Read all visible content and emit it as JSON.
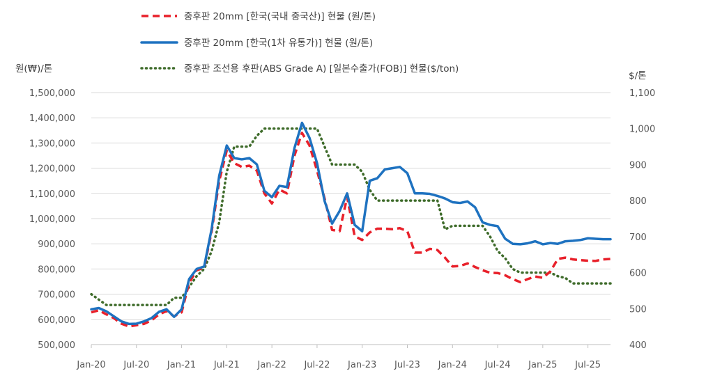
{
  "chart_data": {
    "type": "line",
    "title": "",
    "y_left_unit": "원(₩)/톤",
    "y_right_unit": "$/톤",
    "y_left_ticks": [
      "500,000",
      "600,000",
      "700,000",
      "800,000",
      "900,000",
      "1,000,000",
      "1,100,000",
      "1,200,000",
      "1,300,000",
      "1,400,000",
      "1,500,000"
    ],
    "y_right_ticks": [
      "400",
      "500",
      "600",
      "700",
      "800",
      "900",
      "1,000",
      "1,100"
    ],
    "ylim_left": [
      500000,
      1500000
    ],
    "ylim_right": [
      400,
      1100
    ],
    "x_ticks": [
      "Jan-20",
      "Jul-20",
      "Jan-21",
      "Jul-21",
      "Jan-22",
      "Jul-22",
      "Jan-23",
      "Jul-23",
      "Jan-24",
      "Jul-24",
      "Jan-25",
      "Jul-25"
    ],
    "x_range": [
      "2020-01",
      "2025-10"
    ],
    "grid": "horizontal",
    "legend_position": "top",
    "series": [
      {
        "name": "중후판 20mm [한국(국내 중국산)] 현물 (원/톤)",
        "axis": "left",
        "color": "#e8202a",
        "style": "dashed",
        "points": [
          [
            "2020-01",
            628000
          ],
          [
            "2020-02",
            636000
          ],
          [
            "2020-03",
            620000
          ],
          [
            "2020-04",
            605000
          ],
          [
            "2020-05",
            583000
          ],
          [
            "2020-06",
            572000
          ],
          [
            "2020-07",
            577000
          ],
          [
            "2020-08",
            582000
          ],
          [
            "2020-09",
            596000
          ],
          [
            "2020-10",
            620000
          ],
          [
            "2020-11",
            633000
          ],
          [
            "2020-12",
            612000
          ],
          [
            "2021-01",
            628000
          ],
          [
            "2021-02",
            745000
          ],
          [
            "2021-03",
            795000
          ],
          [
            "2021-04",
            805000
          ],
          [
            "2021-05",
            950000
          ],
          [
            "2021-06",
            1150000
          ],
          [
            "2021-07",
            1270000
          ],
          [
            "2021-08",
            1220000
          ],
          [
            "2021-09",
            1205000
          ],
          [
            "2021-10",
            1210000
          ],
          [
            "2021-11",
            1190000
          ],
          [
            "2021-12",
            1100000
          ],
          [
            "2022-01",
            1060000
          ],
          [
            "2022-02",
            1115000
          ],
          [
            "2022-03",
            1100000
          ],
          [
            "2022-04",
            1250000
          ],
          [
            "2022-05",
            1340000
          ],
          [
            "2022-06",
            1290000
          ],
          [
            "2022-07",
            1190000
          ],
          [
            "2022-08",
            1080000
          ],
          [
            "2022-09",
            955000
          ],
          [
            "2022-10",
            950000
          ],
          [
            "2022-11",
            1085000
          ],
          [
            "2022-12",
            930000
          ],
          [
            "2023-01",
            915000
          ],
          [
            "2023-02",
            945000
          ],
          [
            "2023-03",
            960000
          ],
          [
            "2023-04",
            960000
          ],
          [
            "2023-05",
            958000
          ],
          [
            "2023-06",
            962000
          ],
          [
            "2023-07",
            950000
          ],
          [
            "2023-08",
            865000
          ],
          [
            "2023-09",
            865000
          ],
          [
            "2023-10",
            880000
          ],
          [
            "2023-11",
            875000
          ],
          [
            "2023-12",
            845000
          ],
          [
            "2024-01",
            810000
          ],
          [
            "2024-02",
            812000
          ],
          [
            "2024-03",
            822000
          ],
          [
            "2024-04",
            808000
          ],
          [
            "2024-05",
            795000
          ],
          [
            "2024-06",
            785000
          ],
          [
            "2024-07",
            784000
          ],
          [
            "2024-08",
            775000
          ],
          [
            "2024-09",
            760000
          ],
          [
            "2024-10",
            748000
          ],
          [
            "2024-11",
            760000
          ],
          [
            "2024-12",
            770000
          ],
          [
            "2025-01",
            765000
          ],
          [
            "2025-02",
            790000
          ],
          [
            "2025-03",
            840000
          ],
          [
            "2025-04",
            845000
          ],
          [
            "2025-05",
            838000
          ],
          [
            "2025-06",
            835000
          ],
          [
            "2025-07",
            833000
          ],
          [
            "2025-08",
            832000
          ],
          [
            "2025-09",
            838000
          ],
          [
            "2025-10",
            840000
          ]
        ]
      },
      {
        "name": "중후판 20mm [한국(1차 유통가)] 현물 (원/톤)",
        "axis": "left",
        "color": "#1e72c0",
        "style": "solid",
        "points": [
          [
            "2020-01",
            640000
          ],
          [
            "2020-02",
            645000
          ],
          [
            "2020-03",
            632000
          ],
          [
            "2020-04",
            612000
          ],
          [
            "2020-05",
            592000
          ],
          [
            "2020-06",
            582000
          ],
          [
            "2020-07",
            583000
          ],
          [
            "2020-08",
            592000
          ],
          [
            "2020-09",
            605000
          ],
          [
            "2020-10",
            630000
          ],
          [
            "2020-11",
            640000
          ],
          [
            "2020-12",
            610000
          ],
          [
            "2021-01",
            640000
          ],
          [
            "2021-02",
            760000
          ],
          [
            "2021-03",
            800000
          ],
          [
            "2021-04",
            810000
          ],
          [
            "2021-05",
            960000
          ],
          [
            "2021-06",
            1170000
          ],
          [
            "2021-07",
            1290000
          ],
          [
            "2021-08",
            1240000
          ],
          [
            "2021-09",
            1235000
          ],
          [
            "2021-10",
            1240000
          ],
          [
            "2021-11",
            1215000
          ],
          [
            "2021-12",
            1110000
          ],
          [
            "2022-01",
            1085000
          ],
          [
            "2022-02",
            1130000
          ],
          [
            "2022-03",
            1125000
          ],
          [
            "2022-04",
            1280000
          ],
          [
            "2022-05",
            1380000
          ],
          [
            "2022-06",
            1320000
          ],
          [
            "2022-07",
            1220000
          ],
          [
            "2022-08",
            1070000
          ],
          [
            "2022-09",
            980000
          ],
          [
            "2022-10",
            1030000
          ],
          [
            "2022-11",
            1100000
          ],
          [
            "2022-12",
            975000
          ],
          [
            "2023-01",
            950000
          ],
          [
            "2023-02",
            1150000
          ],
          [
            "2023-03",
            1160000
          ],
          [
            "2023-04",
            1195000
          ],
          [
            "2023-05",
            1200000
          ],
          [
            "2023-06",
            1205000
          ],
          [
            "2023-07",
            1180000
          ],
          [
            "2023-08",
            1100000
          ],
          [
            "2023-09",
            1100000
          ],
          [
            "2023-10",
            1098000
          ],
          [
            "2023-11",
            1090000
          ],
          [
            "2023-12",
            1080000
          ],
          [
            "2024-01",
            1065000
          ],
          [
            "2024-02",
            1062000
          ],
          [
            "2024-03",
            1068000
          ],
          [
            "2024-04",
            1045000
          ],
          [
            "2024-05",
            985000
          ],
          [
            "2024-06",
            975000
          ],
          [
            "2024-07",
            970000
          ],
          [
            "2024-08",
            920000
          ],
          [
            "2024-09",
            900000
          ],
          [
            "2024-10",
            898000
          ],
          [
            "2024-11",
            902000
          ],
          [
            "2024-12",
            910000
          ],
          [
            "2025-01",
            898000
          ],
          [
            "2025-02",
            903000
          ],
          [
            "2025-03",
            900000
          ],
          [
            "2025-04",
            910000
          ],
          [
            "2025-05",
            912000
          ],
          [
            "2025-06",
            915000
          ],
          [
            "2025-07",
            922000
          ],
          [
            "2025-08",
            920000
          ],
          [
            "2025-09",
            918000
          ],
          [
            "2025-10",
            918000
          ]
        ]
      },
      {
        "name": "중후판 조선용 후판(ABS Grade A) [일본수출가(FOB)] 현물($/ton)",
        "axis": "right",
        "color": "#3e6b2a",
        "style": "dotted",
        "points": [
          [
            "2020-01",
            540
          ],
          [
            "2020-02",
            525
          ],
          [
            "2020-03",
            510
          ],
          [
            "2020-04",
            510
          ],
          [
            "2020-05",
            510
          ],
          [
            "2020-06",
            510
          ],
          [
            "2020-07",
            510
          ],
          [
            "2020-08",
            510
          ],
          [
            "2020-09",
            510
          ],
          [
            "2020-10",
            510
          ],
          [
            "2020-11",
            510
          ],
          [
            "2020-12",
            530
          ],
          [
            "2021-01",
            530
          ],
          [
            "2021-02",
            560
          ],
          [
            "2021-03",
            590
          ],
          [
            "2021-04",
            610
          ],
          [
            "2021-05",
            660
          ],
          [
            "2021-06",
            740
          ],
          [
            "2021-07",
            880
          ],
          [
            "2021-08",
            950
          ],
          [
            "2021-09",
            950
          ],
          [
            "2021-10",
            950
          ],
          [
            "2021-11",
            980
          ],
          [
            "2021-12",
            1000
          ],
          [
            "2022-01",
            1000
          ],
          [
            "2022-02",
            1000
          ],
          [
            "2022-03",
            1000
          ],
          [
            "2022-04",
            1000
          ],
          [
            "2022-05",
            1000
          ],
          [
            "2022-06",
            1000
          ],
          [
            "2022-07",
            1000
          ],
          [
            "2022-08",
            950
          ],
          [
            "2022-09",
            900
          ],
          [
            "2022-10",
            900
          ],
          [
            "2022-11",
            900
          ],
          [
            "2022-12",
            900
          ],
          [
            "2023-01",
            880
          ],
          [
            "2023-02",
            830
          ],
          [
            "2023-03",
            800
          ],
          [
            "2023-04",
            800
          ],
          [
            "2023-05",
            800
          ],
          [
            "2023-06",
            800
          ],
          [
            "2023-07",
            800
          ],
          [
            "2023-08",
            800
          ],
          [
            "2023-09",
            800
          ],
          [
            "2023-10",
            800
          ],
          [
            "2023-11",
            800
          ],
          [
            "2023-12",
            720
          ],
          [
            "2024-01",
            730
          ],
          [
            "2024-02",
            730
          ],
          [
            "2024-03",
            730
          ],
          [
            "2024-04",
            730
          ],
          [
            "2024-05",
            730
          ],
          [
            "2024-06",
            700
          ],
          [
            "2024-07",
            660
          ],
          [
            "2024-08",
            640
          ],
          [
            "2024-09",
            610
          ],
          [
            "2024-10",
            600
          ],
          [
            "2024-11",
            600
          ],
          [
            "2024-12",
            600
          ],
          [
            "2025-01",
            600
          ],
          [
            "2025-02",
            600
          ],
          [
            "2025-03",
            590
          ],
          [
            "2025-04",
            585
          ],
          [
            "2025-05",
            570
          ],
          [
            "2025-06",
            570
          ],
          [
            "2025-07",
            570
          ],
          [
            "2025-08",
            570
          ],
          [
            "2025-09",
            570
          ],
          [
            "2025-10",
            570
          ]
        ]
      }
    ]
  }
}
